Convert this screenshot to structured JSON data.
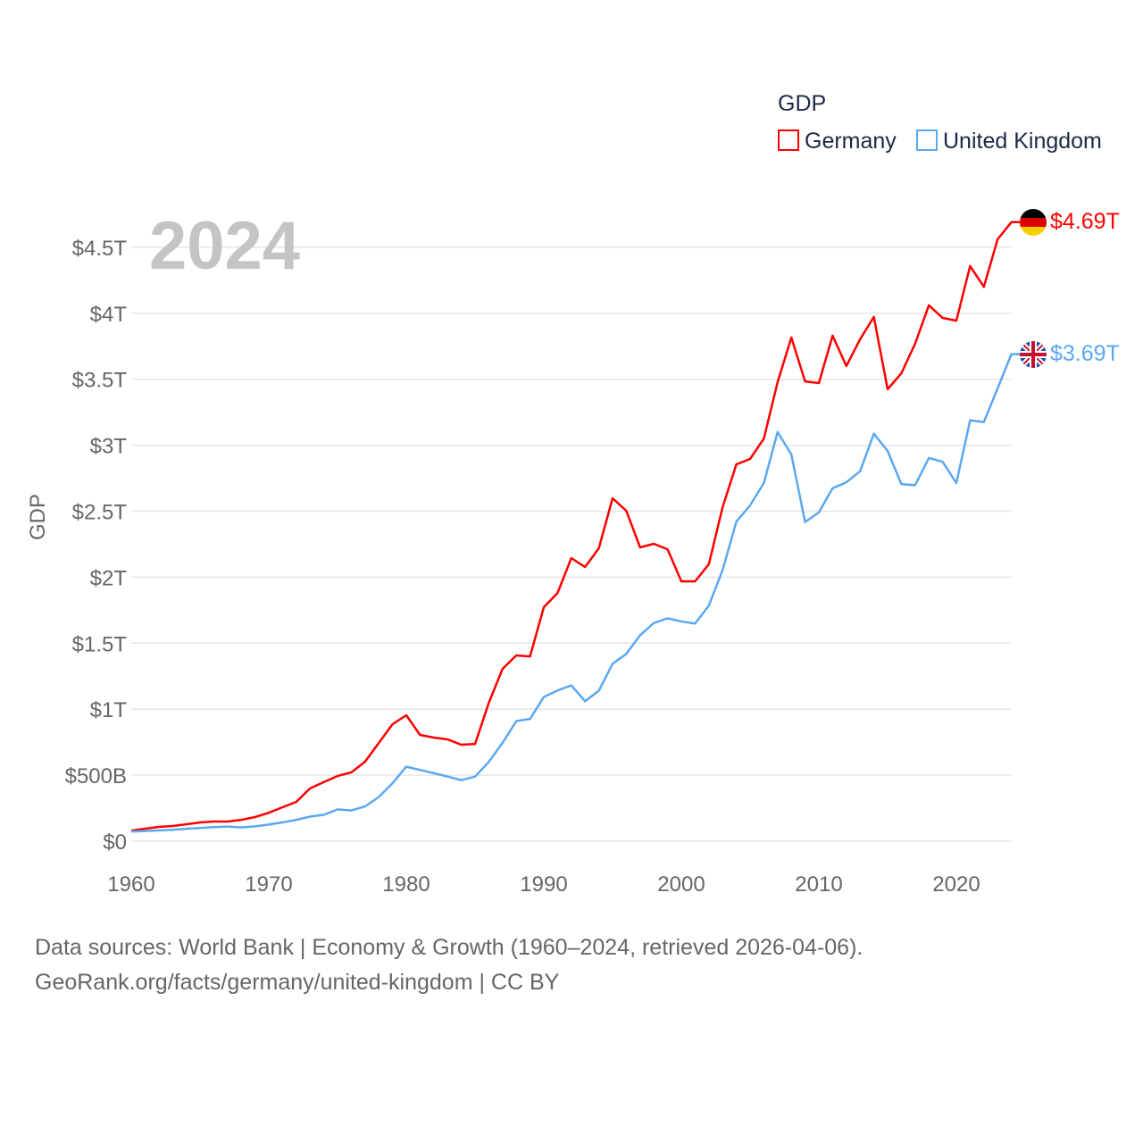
{
  "chart_data": {
    "type": "line",
    "ylabel": "GDP",
    "year_label": "2024",
    "legend": {
      "title": "GDP",
      "position": "top-right",
      "entries": [
        "Germany",
        "United Kingdom"
      ]
    },
    "xlim": [
      1960,
      2024
    ],
    "ylim": [
      0,
      4.69
    ],
    "x_ticks": [
      1960,
      1970,
      1980,
      1990,
      2000,
      2010,
      2020
    ],
    "y_ticks": [
      {
        "value": 0,
        "label": "$0"
      },
      {
        "value": 0.5,
        "label": "$500B"
      },
      {
        "value": 1,
        "label": "$1T"
      },
      {
        "value": 1.5,
        "label": "$1.5T"
      },
      {
        "value": 2,
        "label": "$2T"
      },
      {
        "value": 2.5,
        "label": "$2.5T"
      },
      {
        "value": 3,
        "label": "$3T"
      },
      {
        "value": 3.5,
        "label": "$3.5T"
      },
      {
        "value": 4,
        "label": "$4T"
      },
      {
        "value": 4.5,
        "label": "$4.5T"
      }
    ],
    "x_start": 1960,
    "series": [
      {
        "name": "Germany",
        "color": "#ff0000",
        "end_label": "$4.69T",
        "flag": "germany-flag",
        "values": [
          0.08,
          0.095,
          0.108,
          0.115,
          0.128,
          0.142,
          0.149,
          0.149,
          0.162,
          0.183,
          0.215,
          0.257,
          0.298,
          0.4,
          0.447,
          0.494,
          0.521,
          0.602,
          0.744,
          0.886,
          0.954,
          0.805,
          0.785,
          0.771,
          0.731,
          0.737,
          1.049,
          1.306,
          1.407,
          1.4,
          1.773,
          1.881,
          2.145,
          2.077,
          2.219,
          2.598,
          2.503,
          2.226,
          2.253,
          2.212,
          1.969,
          1.969,
          2.098,
          2.53,
          2.855,
          2.896,
          3.05,
          3.478,
          3.816,
          3.484,
          3.471,
          3.83,
          3.6,
          3.803,
          3.972,
          3.424,
          3.545,
          3.769,
          4.06,
          3.965,
          3.944,
          4.357,
          4.2,
          4.56,
          4.69
        ]
      },
      {
        "name": "United Kingdom",
        "color": "#5ba8f0",
        "end_label": "$3.69T",
        "flag": "uk-flag",
        "values": [
          0.073,
          0.077,
          0.081,
          0.086,
          0.094,
          0.1,
          0.106,
          0.111,
          0.104,
          0.112,
          0.126,
          0.142,
          0.162,
          0.186,
          0.2,
          0.241,
          0.233,
          0.263,
          0.335,
          0.439,
          0.564,
          0.54,
          0.515,
          0.49,
          0.462,
          0.489,
          0.601,
          0.745,
          0.91,
          0.926,
          1.093,
          1.142,
          1.18,
          1.061,
          1.14,
          1.344,
          1.419,
          1.56,
          1.653,
          1.688,
          1.665,
          1.649,
          1.785,
          2.054,
          2.421,
          2.544,
          2.713,
          3.1,
          2.93,
          2.418,
          2.491,
          2.674,
          2.719,
          2.803,
          3.087,
          2.957,
          2.706,
          2.697,
          2.903,
          2.875,
          2.714,
          3.188,
          3.176,
          3.43,
          3.69
        ]
      }
    ]
  },
  "footer": {
    "line1": "Data sources: World Bank | Economy & Growth (1960–2024, retrieved 2026-04-06).",
    "line2": "GeoRank.org/facts/germany/united-kingdom | CC BY"
  }
}
